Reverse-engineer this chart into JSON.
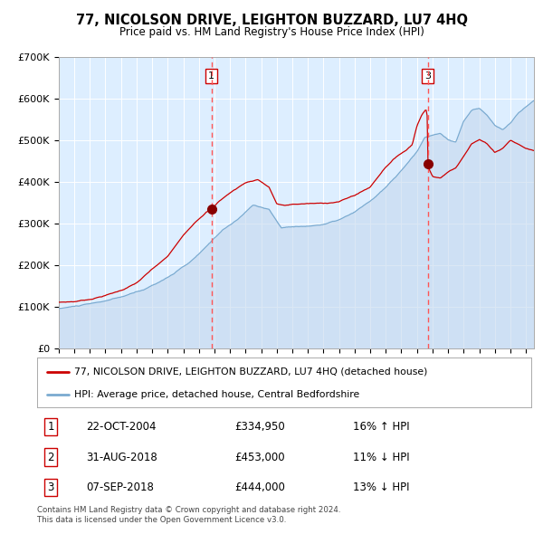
{
  "title1": "77, NICOLSON DRIVE, LEIGHTON BUZZARD, LU7 4HQ",
  "title2": "Price paid vs. HM Land Registry's House Price Index (HPI)",
  "legend_line1": "77, NICOLSON DRIVE, LEIGHTON BUZZARD, LU7 4HQ (detached house)",
  "legend_line2": "HPI: Average price, detached house, Central Bedfordshire",
  "transactions": [
    {
      "label": "1",
      "date_str": "22-OCT-2004",
      "date_num": 2004.81,
      "price": 334950,
      "pct": "16%",
      "dir": "↑"
    },
    {
      "label": "2",
      "date_str": "31-AUG-2018",
      "date_num": 2018.66,
      "price": 453000,
      "pct": "11%",
      "dir": "↓"
    },
    {
      "label": "3",
      "date_str": "07-SEP-2018",
      "date_num": 2018.69,
      "price": 444000,
      "pct": "13%",
      "dir": "↓"
    }
  ],
  "table_rows": [
    [
      "1",
      "22-OCT-2004",
      "£334,950",
      "16% ↑ HPI"
    ],
    [
      "2",
      "31-AUG-2018",
      "£453,000",
      "11% ↓ HPI"
    ],
    [
      "3",
      "07-SEP-2018",
      "£444,000",
      "13% ↓ HPI"
    ]
  ],
  "footer": "Contains HM Land Registry data © Crown copyright and database right 2024.\nThis data is licensed under the Open Government Licence v3.0.",
  "ylim": [
    0,
    700000
  ],
  "yticks": [
    0,
    100000,
    200000,
    300000,
    400000,
    500000,
    600000,
    700000
  ],
  "ytick_labels": [
    "£0",
    "£100K",
    "£200K",
    "£300K",
    "£400K",
    "£500K",
    "£600K",
    "£700K"
  ],
  "xlim_start": 1995.0,
  "xlim_end": 2025.5,
  "background_color": "#ddeeff",
  "line_color_red": "#cc0000",
  "line_color_blue": "#7aaad0",
  "fill_color_blue": "#c5d8ee",
  "marker_color": "#880000",
  "vline_color": "#ff5555",
  "box_color": "#cc0000",
  "grid_color": "#ffffff",
  "title1_fontsize": 10.5,
  "title2_fontsize": 8.5
}
